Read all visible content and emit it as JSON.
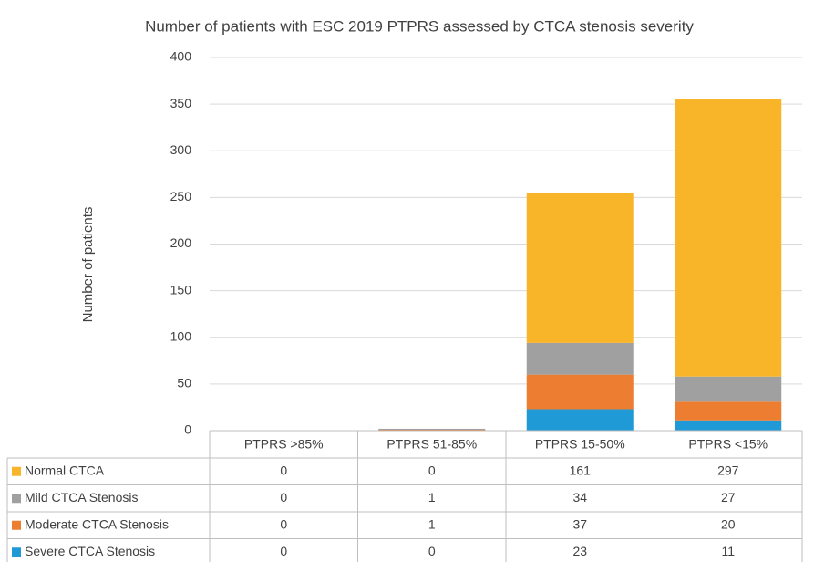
{
  "chart_data": {
    "type": "bar",
    "stacked": true,
    "title": "Number of patients with ESC 2019 PTPRS assessed by CTCA stenosis severity",
    "y_label": "Number of patients",
    "categories": [
      "PTPRS >85%",
      "PTPRS 51-85%",
      "PTPRS 15-50%",
      "PTPRS <15%"
    ],
    "series": [
      {
        "name": "Normal CTCA",
        "color": "#f9b52a",
        "values": [
          0,
          0,
          161,
          297
        ]
      },
      {
        "name": "Mild CTCA Stenosis",
        "color": "#a0a0a0",
        "values": [
          0,
          1,
          34,
          27
        ]
      },
      {
        "name": "Moderate CTCA Stenosis",
        "color": "#ed7d31",
        "values": [
          0,
          1,
          37,
          20
        ]
      },
      {
        "name": "Severe CTCA Stenosis",
        "color": "#1f9ad6",
        "values": [
          0,
          0,
          23,
          11
        ]
      }
    ],
    "ylim": [
      0,
      400
    ],
    "yticks": [
      0,
      50,
      100,
      150,
      200,
      250,
      300,
      350,
      400
    ],
    "grid": true,
    "data_table": true
  }
}
